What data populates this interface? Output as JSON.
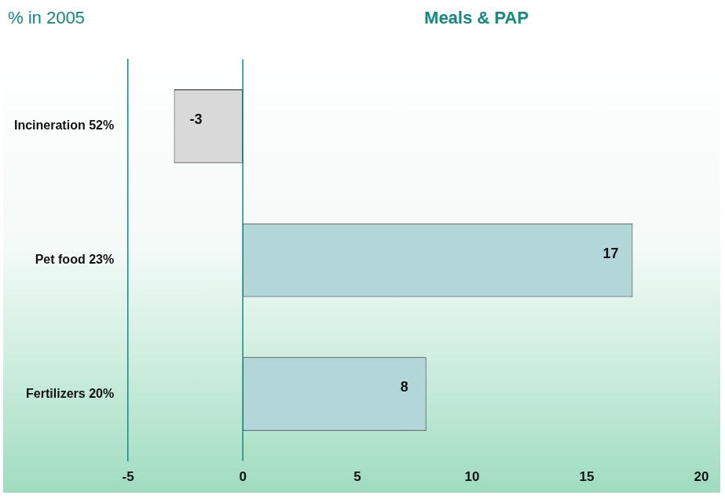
{
  "chart_data": {
    "type": "bar",
    "orientation": "horizontal",
    "title": "Meals & PAP",
    "subtitle": "% in 2005",
    "categories": [
      "Incineration 52%",
      "Pet food 23%",
      "Fertilizers 20%"
    ],
    "values": [
      -3,
      17,
      8
    ],
    "colors": [
      "#d9d9d9",
      "#b3d6d9",
      "#b3d6d9"
    ],
    "xlim": [
      -5,
      20
    ],
    "xticks": [
      -5,
      0,
      5,
      10,
      15,
      20
    ],
    "grid": false,
    "data_labels": true
  }
}
